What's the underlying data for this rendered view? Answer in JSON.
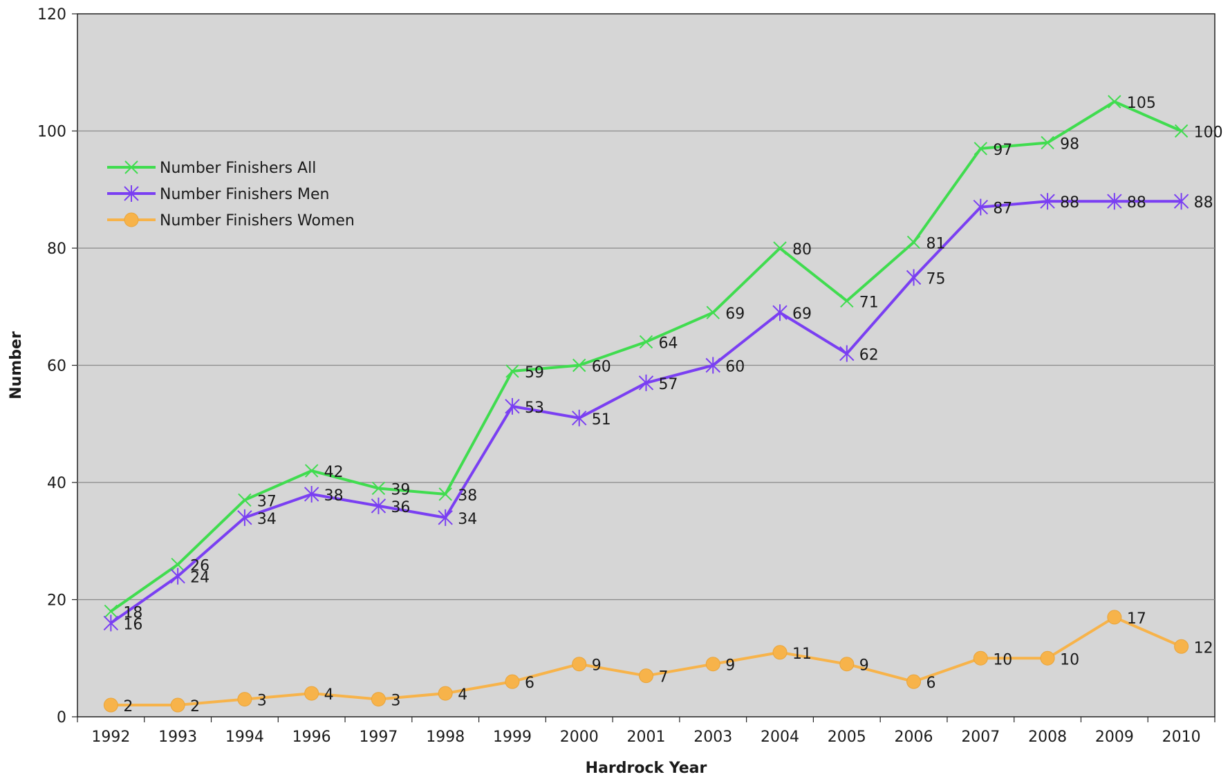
{
  "chart_data": {
    "type": "line",
    "title": "",
    "xlabel": "Hardrock Year",
    "ylabel": "Number",
    "categories": [
      "1992",
      "1993",
      "1994",
      "1996",
      "1997",
      "1998",
      "1999",
      "2000",
      "2001",
      "2003",
      "2004",
      "2005",
      "2006",
      "2007",
      "2008",
      "2009",
      "2010"
    ],
    "ylim": [
      0,
      120
    ],
    "yticks": [
      "0",
      "20",
      "40",
      "60",
      "80",
      "100",
      "120"
    ],
    "grid": true,
    "legend": "top-left",
    "series": [
      {
        "name": "Number Finishers All",
        "color": "#40dc4f",
        "marker": "x",
        "values": [
          18,
          26,
          37,
          42,
          39,
          38,
          59,
          60,
          64,
          69,
          80,
          71,
          81,
          97,
          98,
          105,
          100
        ]
      },
      {
        "name": "Number Finishers Men",
        "color": "#7a3ff2",
        "marker": "asterisk",
        "values": [
          16,
          24,
          34,
          38,
          36,
          34,
          53,
          51,
          57,
          60,
          69,
          62,
          75,
          87,
          88,
          88,
          88
        ]
      },
      {
        "name": "Number Finishers Women",
        "color": "#f7b34a",
        "marker": "circle",
        "values": [
          2,
          2,
          3,
          4,
          3,
          4,
          6,
          9,
          7,
          9,
          11,
          9,
          6,
          10,
          10,
          17,
          12
        ]
      }
    ]
  }
}
